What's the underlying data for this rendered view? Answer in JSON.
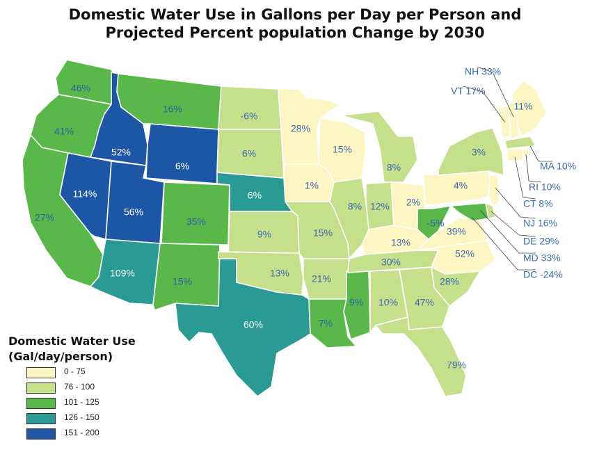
{
  "title": {
    "line1": "Domestic Water Use in Gallons per Day per Person and",
    "line2": "Projected Percent population Change by 2030"
  },
  "legend": {
    "title_line1": "Domestic Water Use",
    "title_line2": "(Gal/day/person)",
    "classes": [
      {
        "label": "0 - 75",
        "color": "#fdf6c3"
      },
      {
        "label": "76 - 100",
        "color": "#c5df8b"
      },
      {
        "label": "101 - 125",
        "color": "#5ab84b"
      },
      {
        "label": "126 - 150",
        "color": "#2a9a94"
      },
      {
        "label": "151 - 200",
        "color": "#1d56a5"
      }
    ]
  },
  "states": [
    {
      "code": "WA",
      "label": "46%",
      "class": 2
    },
    {
      "code": "OR",
      "label": "41%",
      "class": 2
    },
    {
      "code": "CA",
      "label": "27%",
      "class": 2
    },
    {
      "code": "ID",
      "label": "52%",
      "class": 4
    },
    {
      "code": "NV",
      "label": "114%",
      "class": 4
    },
    {
      "code": "UT",
      "label": "56%",
      "class": 4
    },
    {
      "code": "WY",
      "label": "6%",
      "class": 4
    },
    {
      "code": "AZ",
      "label": "109%",
      "class": 3
    },
    {
      "code": "NE",
      "label": "6%",
      "class": 3
    },
    {
      "code": "TX",
      "label": "60%",
      "class": 3
    },
    {
      "code": "MT",
      "label": "16%",
      "class": 2
    },
    {
      "code": "CO",
      "label": "35%",
      "class": 2
    },
    {
      "code": "NM",
      "label": "15%",
      "class": 2
    },
    {
      "code": "ND",
      "label": "-6%",
      "class": 1
    },
    {
      "code": "SD",
      "label": "6%",
      "class": 1
    },
    {
      "code": "KS",
      "label": "9%",
      "class": 1
    },
    {
      "code": "OK",
      "label": "13%",
      "class": 1
    },
    {
      "code": "MN",
      "label": "28%",
      "class": 0
    },
    {
      "code": "IA",
      "label": "1%",
      "class": 0
    },
    {
      "code": "MO",
      "label": "15%",
      "class": 1
    },
    {
      "code": "AR",
      "label": "21%",
      "class": 1
    },
    {
      "code": "LA",
      "label": "7%",
      "class": 2
    },
    {
      "code": "WI",
      "label": "15%",
      "class": 0
    },
    {
      "code": "IL",
      "label": "8%",
      "class": 1
    },
    {
      "code": "MS",
      "label": "9%",
      "class": 2
    },
    {
      "code": "MI",
      "label": "8%",
      "class": 1
    },
    {
      "code": "IN",
      "label": "12%",
      "class": 1
    },
    {
      "code": "KY",
      "label": "13%",
      "class": 0
    },
    {
      "code": "TN",
      "label": "30%",
      "class": 1
    },
    {
      "code": "AL",
      "label": "10%",
      "class": 1
    },
    {
      "code": "OH",
      "label": "2%",
      "class": 0
    },
    {
      "code": "WV",
      "label": "-5%",
      "class": 2
    },
    {
      "code": "VA",
      "label": "39%",
      "class": 0
    },
    {
      "code": "NC",
      "label": "52%",
      "class": 0
    },
    {
      "code": "SC",
      "label": "28%",
      "class": 1
    },
    {
      "code": "GA",
      "label": "47%",
      "class": 1
    },
    {
      "code": "FL",
      "label": "79%",
      "class": 1
    },
    {
      "code": "PA",
      "label": "4%",
      "class": 0
    },
    {
      "code": "NY",
      "label": "3%",
      "class": 1
    },
    {
      "code": "ME",
      "label": "11%",
      "class": 0
    }
  ],
  "callouts": [
    {
      "code": "NH",
      "label": "NH 33%"
    },
    {
      "code": "VT",
      "label": "VT 17%"
    },
    {
      "code": "MA",
      "label": "MA 10%"
    },
    {
      "code": "RI",
      "label": "RI 10%"
    },
    {
      "code": "CT",
      "label": "CT 8%"
    },
    {
      "code": "NJ",
      "label": "NJ 16%"
    },
    {
      "code": "DE",
      "label": "DE 29%"
    },
    {
      "code": "MD",
      "label": "MD 33%"
    },
    {
      "code": "DC",
      "label": "DC -24%"
    }
  ],
  "callout_classes": {
    "NH": 0,
    "VT": 0,
    "MA": 1,
    "RI": 0,
    "CT": 0,
    "NJ": 0,
    "DE": 1,
    "MD": 2
  }
}
